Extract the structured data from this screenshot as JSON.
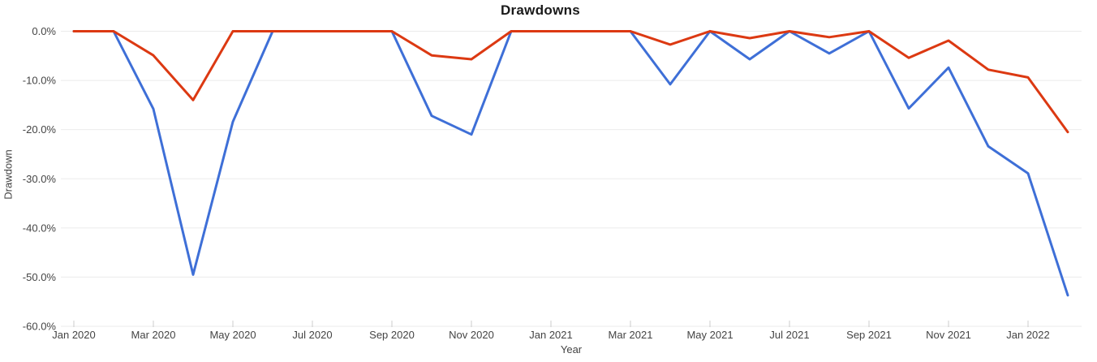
{
  "chart_data": {
    "type": "line",
    "title": "Drawdowns",
    "xlabel": "Year",
    "ylabel": "Drawdown",
    "ylim": [
      -60,
      0
    ],
    "grid": true,
    "legend": "none",
    "y_tick_labels": [
      "0.0%",
      "-10.0%",
      "-20.0%",
      "-30.0%",
      "-40.0%",
      "-50.0%",
      "-60.0%"
    ],
    "x_tick_labels": [
      "Jan 2020",
      "Mar 2020",
      "May 2020",
      "Jul 2020",
      "Sep 2020",
      "Nov 2020",
      "Jan 2021",
      "Mar 2021",
      "May 2021",
      "Jul 2021",
      "Sep 2021",
      "Nov 2021",
      "Jan 2022"
    ],
    "x": [
      "Jan 2020",
      "Feb 2020",
      "Mar 2020",
      "Apr 2020",
      "May 2020",
      "Jun 2020",
      "Jul 2020",
      "Aug 2020",
      "Sep 2020",
      "Oct 2020",
      "Nov 2020",
      "Dec 2020",
      "Jan 2021",
      "Feb 2021",
      "Mar 2021",
      "Apr 2021",
      "May 2021",
      "Jun 2021",
      "Jul 2021",
      "Aug 2021",
      "Sep 2021",
      "Oct 2021",
      "Nov 2021",
      "Dec 2021",
      "Jan 2022",
      "Feb 2022"
    ],
    "series": [
      {
        "name": "blue-series",
        "color": "#3e6fd7",
        "values": [
          0,
          0,
          -15.8,
          -49.5,
          -18.4,
          0,
          0,
          0,
          0,
          -17.2,
          -21.0,
          0,
          0,
          0,
          0,
          -10.8,
          0,
          -5.7,
          0,
          -4.5,
          0,
          -15.7,
          -7.4,
          -23.4,
          -28.9,
          -53.7
        ]
      },
      {
        "name": "red-series",
        "color": "#dc3912",
        "values": [
          0,
          0,
          -4.9,
          -14.0,
          0,
          0,
          0,
          0,
          0,
          -4.9,
          -5.7,
          0,
          0,
          0,
          0,
          -2.7,
          0,
          -1.4,
          0,
          -1.2,
          0,
          -5.4,
          -1.9,
          -7.8,
          -9.4,
          -20.5
        ]
      }
    ],
    "colors": {
      "grid": "#ebebeb",
      "tick_mark": "#cccccc",
      "tick_text": "#444444",
      "title_text": "#1a1a1a"
    }
  }
}
